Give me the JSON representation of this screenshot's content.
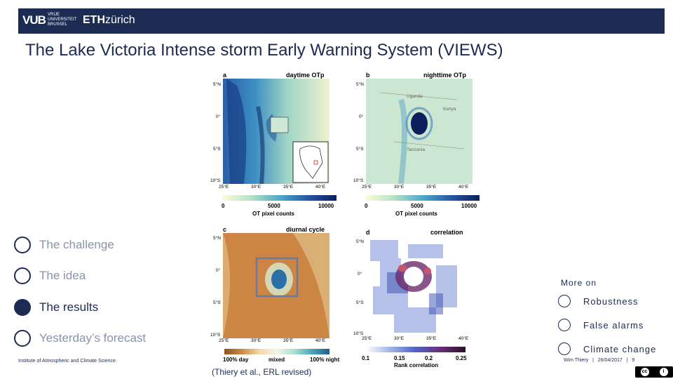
{
  "header": {
    "logo_vub": "VUB",
    "logo_vub_sub": [
      "VRIJE",
      "UNIVERSITEIT",
      "BRUSSEL"
    ],
    "logo_eth_bold": "ETH",
    "logo_eth_rest": "zürich"
  },
  "title": "The Lake Victoria Intense storm Early Warning System (VIEWS)",
  "panels": {
    "a": {
      "letter": "a",
      "title": "daytime OTp"
    },
    "b": {
      "letter": "b",
      "title": "nighttime OTp",
      "countries": [
        "Uganda",
        "Kenya",
        "Tanzania"
      ]
    },
    "c": {
      "letter": "c",
      "title": "diurnal cycle"
    },
    "d": {
      "letter": "d",
      "title": "correlation"
    }
  },
  "lat_ticks": [
    "5°N",
    "0°",
    "5°S",
    "10°S"
  ],
  "lon_ticks": [
    "25°E",
    "30°E",
    "35°E",
    "40°E"
  ],
  "colorbars": {
    "a": {
      "ticks": [
        "0",
        "5000",
        "10000"
      ],
      "label": "OT pixel counts"
    },
    "b": {
      "ticks": [
        "0",
        "5000",
        "10000"
      ],
      "label": "OT pixel counts"
    },
    "c": {
      "ticks": [
        "100% day",
        "mixed",
        "100% night"
      ],
      "label": ""
    },
    "d": {
      "ticks": [
        "0.1",
        "0.15",
        "0.2",
        "0.25"
      ],
      "label": "Rank correlation"
    }
  },
  "nav": {
    "items": [
      {
        "label": "The challenge",
        "active": false
      },
      {
        "label": "The idea",
        "active": false
      },
      {
        "label": "The results",
        "active": true
      },
      {
        "label": "Yesterday’s forecast",
        "active": false
      }
    ]
  },
  "more": {
    "title": "More on",
    "items": [
      "Robustness",
      "False alarms",
      "Climate change"
    ]
  },
  "footer": {
    "institute": "Institute of Atmospheric and Climate Science",
    "author": "Wim Thiery",
    "separator": "|",
    "date": "26/04/2017",
    "page": "9",
    "citation": "(Thiery et al., ERL revised)",
    "license": "cc"
  },
  "colors": {
    "brand": "#1c2b52",
    "muted": "#8a93ad"
  }
}
